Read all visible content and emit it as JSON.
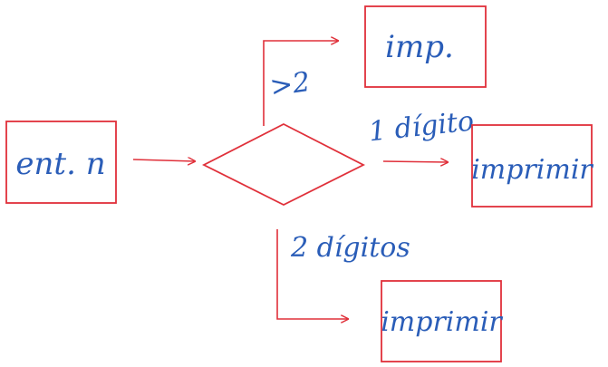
{
  "diagram": {
    "input_box": {
      "label": "ent. n"
    },
    "decision": {
      "label": ""
    },
    "branches": {
      "top": {
        "condition": ">2",
        "target": "imp."
      },
      "right": {
        "condition": "1 dígito",
        "target": "imprimir"
      },
      "bottom": {
        "condition": "2 dígitos",
        "target": "imprimir"
      }
    }
  },
  "colors": {
    "shape_stroke": "#e0303a",
    "handwriting": "#2a5db8",
    "background": "#ffffff"
  }
}
